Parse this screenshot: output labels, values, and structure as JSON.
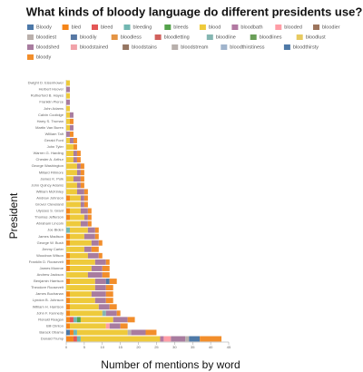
{
  "chart_data": {
    "type": "stacked-bar-horizontal",
    "title": "What kinds of bloody language do different presidents use?",
    "x_label": "Number of mentions by word",
    "y_label": "President",
    "categories": [
      "Dwight D. Eisenhower",
      "Herbert Hoover",
      "Rutherford B. Hayes",
      "Franklin Pierce",
      "John Adams",
      "Calvin Coolidge",
      "Harry S. Truman",
      "Martin Van Buren",
      "William Taft",
      "Gerald Ford",
      "John Tyler",
      "Warren G. Harding",
      "Chester A. Arthur",
      "George Washington",
      "Millard Fillmore",
      "James K. Polk",
      "John Quincy Adams",
      "William McKinley",
      "Andrew Johnson",
      "Grover Cleveland",
      "Ulysses S. Grant",
      "Thomas Jefferson",
      "Abraham Lincoln",
      "Joe Biden",
      "James Madison",
      "George W. Bush",
      "Jimmy Carter",
      "Woodrow Wilson",
      "Franklin D. Roosevelt",
      "James Monroe",
      "Andrew Jackson",
      "Benjamin Harrison",
      "Theodore Roosevelt",
      "James Buchanan",
      "Lyndon B. Johnson",
      "William H. Harrison",
      "John F. Kennedy",
      "Ronald Reagan",
      "Bill Clinton",
      "Barack Obama",
      "Donald Trump"
    ],
    "xlim": [
      0,
      45
    ],
    "xticks": [
      0,
      5,
      10,
      15,
      20,
      25,
      30,
      35,
      40,
      45
    ],
    "series": [
      {
        "name": "Bloody",
        "color": "#4c78a8",
        "values": [
          0,
          0,
          0,
          0,
          0,
          0,
          0,
          0,
          0,
          0,
          0,
          0,
          0,
          0,
          0,
          0,
          0,
          0,
          0,
          0,
          0,
          0,
          0,
          0,
          0,
          0,
          0,
          0,
          0,
          0,
          0,
          0,
          0,
          0,
          0,
          0,
          0,
          0,
          0,
          1,
          0
        ]
      },
      {
        "name": "bled",
        "color": "#f58518",
        "values": [
          0,
          0,
          0,
          0,
          0,
          0,
          0,
          0,
          0,
          0,
          0,
          0,
          0,
          0,
          0,
          0,
          0,
          0,
          1,
          0,
          1,
          1,
          0,
          0,
          1,
          1,
          0,
          1,
          1,
          1,
          0,
          1,
          0,
          1,
          1,
          1,
          1,
          1,
          1,
          1,
          2
        ]
      },
      {
        "name": "bleed",
        "color": "#e45756",
        "values": [
          0,
          0,
          0,
          0,
          0,
          0,
          0,
          0,
          0,
          0,
          0,
          0,
          0,
          0,
          0,
          0,
          0,
          0,
          0,
          0,
          0,
          0,
          0,
          0,
          0,
          0,
          0,
          0,
          0,
          0,
          0,
          0,
          0,
          0,
          0,
          0,
          0,
          1,
          0,
          0,
          1
        ]
      },
      {
        "name": "bleeding",
        "color": "#72b7b2",
        "values": [
          0,
          0,
          0,
          0,
          0,
          0,
          0,
          0,
          0,
          0,
          0,
          0,
          0,
          0,
          0,
          0,
          0,
          0,
          0,
          0,
          0,
          0,
          0,
          1,
          0,
          0,
          0,
          0,
          0,
          0,
          0,
          0,
          0,
          0,
          0,
          0,
          0,
          1,
          0,
          1,
          1
        ]
      },
      {
        "name": "bleeds",
        "color": "#54a24b",
        "values": [
          0,
          0,
          0,
          0,
          0,
          0,
          0,
          0,
          0,
          0,
          0,
          0,
          0,
          0,
          0,
          0,
          0,
          0,
          0,
          0,
          0,
          0,
          0,
          0,
          0,
          0,
          0,
          0,
          0,
          0,
          0,
          0,
          0,
          0,
          0,
          0,
          0,
          1,
          0,
          0,
          0
        ]
      },
      {
        "name": "blood",
        "color": "#eeca3b",
        "values": [
          1,
          0,
          1,
          0,
          1,
          1,
          1,
          1,
          0,
          1,
          2,
          2,
          2,
          3,
          3,
          2,
          3,
          3,
          3,
          4,
          3,
          4,
          4,
          5,
          4,
          6,
          5,
          5,
          7,
          6,
          6,
          7,
          8,
          6,
          7,
          8,
          9,
          9,
          10,
          14,
          22
        ]
      },
      {
        "name": "bloodbath",
        "color": "#b279a2",
        "values": [
          0,
          0,
          0,
          0,
          0,
          0,
          0,
          0,
          0,
          0,
          0,
          0,
          0,
          0,
          0,
          0,
          0,
          0,
          0,
          0,
          0,
          0,
          0,
          0,
          0,
          0,
          0,
          0,
          0,
          0,
          0,
          0,
          0,
          0,
          0,
          0,
          0,
          0,
          0,
          0,
          1
        ]
      },
      {
        "name": "blooded",
        "color": "#ff9da6",
        "values": [
          0,
          0,
          0,
          0,
          0,
          0,
          0,
          0,
          0,
          0,
          0,
          0,
          0,
          0,
          0,
          0,
          0,
          0,
          0,
          0,
          0,
          0,
          0,
          0,
          0,
          0,
          0,
          0,
          0,
          0,
          0,
          0,
          0,
          0,
          0,
          0,
          0,
          0,
          1,
          0,
          2
        ]
      },
      {
        "name": "bloodier",
        "color": "#9d755d",
        "values": [
          0,
          0,
          0,
          0,
          0,
          0,
          0,
          0,
          0,
          0,
          0,
          0,
          0,
          0,
          0,
          0,
          0,
          0,
          0,
          0,
          0,
          0,
          0,
          0,
          0,
          0,
          0,
          0,
          0,
          0,
          0,
          0,
          0,
          0,
          0,
          0,
          0,
          0,
          0,
          0,
          0
        ]
      },
      {
        "name": "bloodiest",
        "color": "#bab0ac",
        "values": [
          0,
          0,
          0,
          0,
          0,
          0,
          0,
          0,
          0,
          0,
          0,
          0,
          0,
          0,
          0,
          0,
          0,
          0,
          0,
          0,
          0,
          0,
          0,
          0,
          0,
          0,
          0,
          0,
          0,
          0,
          0,
          0,
          0,
          0,
          0,
          0,
          0,
          0,
          0,
          1,
          0
        ]
      },
      {
        "name": "bloodily",
        "color": "#5778a4",
        "values": [
          0,
          0,
          0,
          0,
          0,
          0,
          0,
          0,
          0,
          0,
          0,
          0,
          0,
          0,
          0,
          0,
          0,
          0,
          0,
          0,
          0,
          0,
          0,
          0,
          0,
          0,
          0,
          0,
          0,
          0,
          0,
          0,
          0,
          0,
          0,
          0,
          0,
          0,
          0,
          0,
          0
        ]
      },
      {
        "name": "bloodless",
        "color": "#e49444",
        "values": [
          0,
          0,
          0,
          0,
          0,
          0,
          0,
          0,
          0,
          0,
          0,
          0,
          0,
          0,
          0,
          0,
          0,
          0,
          0,
          0,
          0,
          0,
          0,
          0,
          0,
          0,
          0,
          0,
          0,
          0,
          0,
          0,
          0,
          0,
          0,
          0,
          0,
          0,
          0,
          0,
          0
        ]
      },
      {
        "name": "bloodletting",
        "color": "#d1615d",
        "values": [
          0,
          0,
          0,
          0,
          0,
          0,
          0,
          0,
          0,
          0,
          0,
          0,
          0,
          0,
          0,
          0,
          0,
          0,
          0,
          0,
          0,
          0,
          0,
          0,
          0,
          0,
          0,
          0,
          0,
          0,
          0,
          0,
          0,
          0,
          0,
          0,
          0,
          0,
          0,
          0,
          0
        ]
      },
      {
        "name": "bloodline",
        "color": "#85b6b2",
        "values": [
          0,
          0,
          0,
          0,
          0,
          0,
          0,
          0,
          0,
          0,
          0,
          0,
          0,
          0,
          0,
          0,
          0,
          0,
          0,
          0,
          0,
          0,
          0,
          0,
          0,
          0,
          0,
          0,
          0,
          0,
          0,
          0,
          0,
          0,
          0,
          0,
          1,
          0,
          0,
          0,
          0
        ]
      },
      {
        "name": "bloodlines",
        "color": "#6a9f58",
        "values": [
          0,
          0,
          0,
          0,
          0,
          0,
          0,
          0,
          0,
          0,
          0,
          0,
          0,
          0,
          0,
          0,
          0,
          0,
          0,
          0,
          0,
          0,
          0,
          0,
          0,
          0,
          0,
          0,
          0,
          0,
          0,
          0,
          0,
          0,
          0,
          0,
          0,
          0,
          0,
          0,
          0
        ]
      },
      {
        "name": "bloodlust",
        "color": "#e7ca60",
        "values": [
          0,
          0,
          0,
          0,
          0,
          0,
          0,
          0,
          0,
          0,
          0,
          0,
          0,
          0,
          0,
          0,
          0,
          0,
          0,
          0,
          0,
          0,
          0,
          0,
          0,
          0,
          0,
          0,
          0,
          0,
          0,
          0,
          0,
          0,
          0,
          0,
          0,
          0,
          0,
          0,
          0
        ]
      },
      {
        "name": "bloodshed",
        "color": "#a87c9f",
        "values": [
          0,
          1,
          0,
          1,
          0,
          1,
          0,
          1,
          1,
          1,
          0,
          1,
          1,
          1,
          1,
          2,
          1,
          2,
          1,
          1,
          2,
          1,
          2,
          2,
          3,
          2,
          2,
          3,
          3,
          3,
          4,
          3,
          3,
          4,
          3,
          3,
          3,
          4,
          3,
          4,
          4
        ]
      },
      {
        "name": "bloodstained",
        "color": "#f1a2a9",
        "values": [
          0,
          0,
          0,
          0,
          0,
          0,
          0,
          0,
          0,
          0,
          0,
          0,
          0,
          0,
          0,
          0,
          0,
          0,
          0,
          0,
          0,
          0,
          0,
          0,
          0,
          0,
          0,
          0,
          0,
          0,
          0,
          0,
          0,
          0,
          0,
          0,
          0,
          0,
          0,
          0,
          0
        ]
      },
      {
        "name": "bloodstains",
        "color": "#967662",
        "values": [
          0,
          0,
          0,
          0,
          0,
          0,
          0,
          0,
          0,
          0,
          0,
          0,
          0,
          0,
          0,
          0,
          0,
          0,
          0,
          0,
          0,
          0,
          0,
          0,
          0,
          0,
          0,
          0,
          0,
          0,
          0,
          0,
          0,
          0,
          0,
          0,
          0,
          0,
          0,
          0,
          0
        ]
      },
      {
        "name": "bloodstream",
        "color": "#b8b0ac",
        "values": [
          0,
          0,
          0,
          0,
          0,
          0,
          0,
          0,
          0,
          0,
          0,
          0,
          0,
          0,
          0,
          0,
          0,
          0,
          0,
          0,
          0,
          0,
          0,
          0,
          0,
          0,
          0,
          0,
          0,
          0,
          0,
          0,
          0,
          0,
          0,
          0,
          0,
          0,
          0,
          0,
          1
        ]
      },
      {
        "name": "bloodthirstiness",
        "color": "#a0b4cc",
        "values": [
          0,
          0,
          0,
          0,
          0,
          0,
          0,
          0,
          0,
          0,
          0,
          0,
          0,
          0,
          0,
          0,
          0,
          0,
          0,
          0,
          0,
          0,
          0,
          0,
          0,
          0,
          0,
          0,
          0,
          0,
          0,
          0,
          0,
          0,
          0,
          0,
          0,
          0,
          0,
          0,
          0
        ]
      },
      {
        "name": "bloodthirsty",
        "color": "#4e79a7",
        "values": [
          0,
          0,
          0,
          0,
          0,
          0,
          0,
          0,
          0,
          0,
          0,
          0,
          0,
          0,
          0,
          0,
          0,
          0,
          0,
          0,
          0,
          0,
          0,
          0,
          0,
          0,
          0,
          0,
          0,
          0,
          0,
          1,
          0,
          0,
          0,
          0,
          0,
          0,
          0,
          0,
          3
        ]
      },
      {
        "name": "bloody",
        "color": "#f28e2b",
        "values": [
          0,
          0,
          0,
          0,
          0,
          0,
          1,
          0,
          1,
          1,
          1,
          1,
          1,
          1,
          1,
          1,
          1,
          1,
          1,
          1,
          1,
          1,
          1,
          1,
          1,
          1,
          2,
          1,
          1,
          2,
          2,
          2,
          2,
          2,
          2,
          2,
          1,
          2,
          2,
          3,
          6
        ]
      }
    ]
  }
}
